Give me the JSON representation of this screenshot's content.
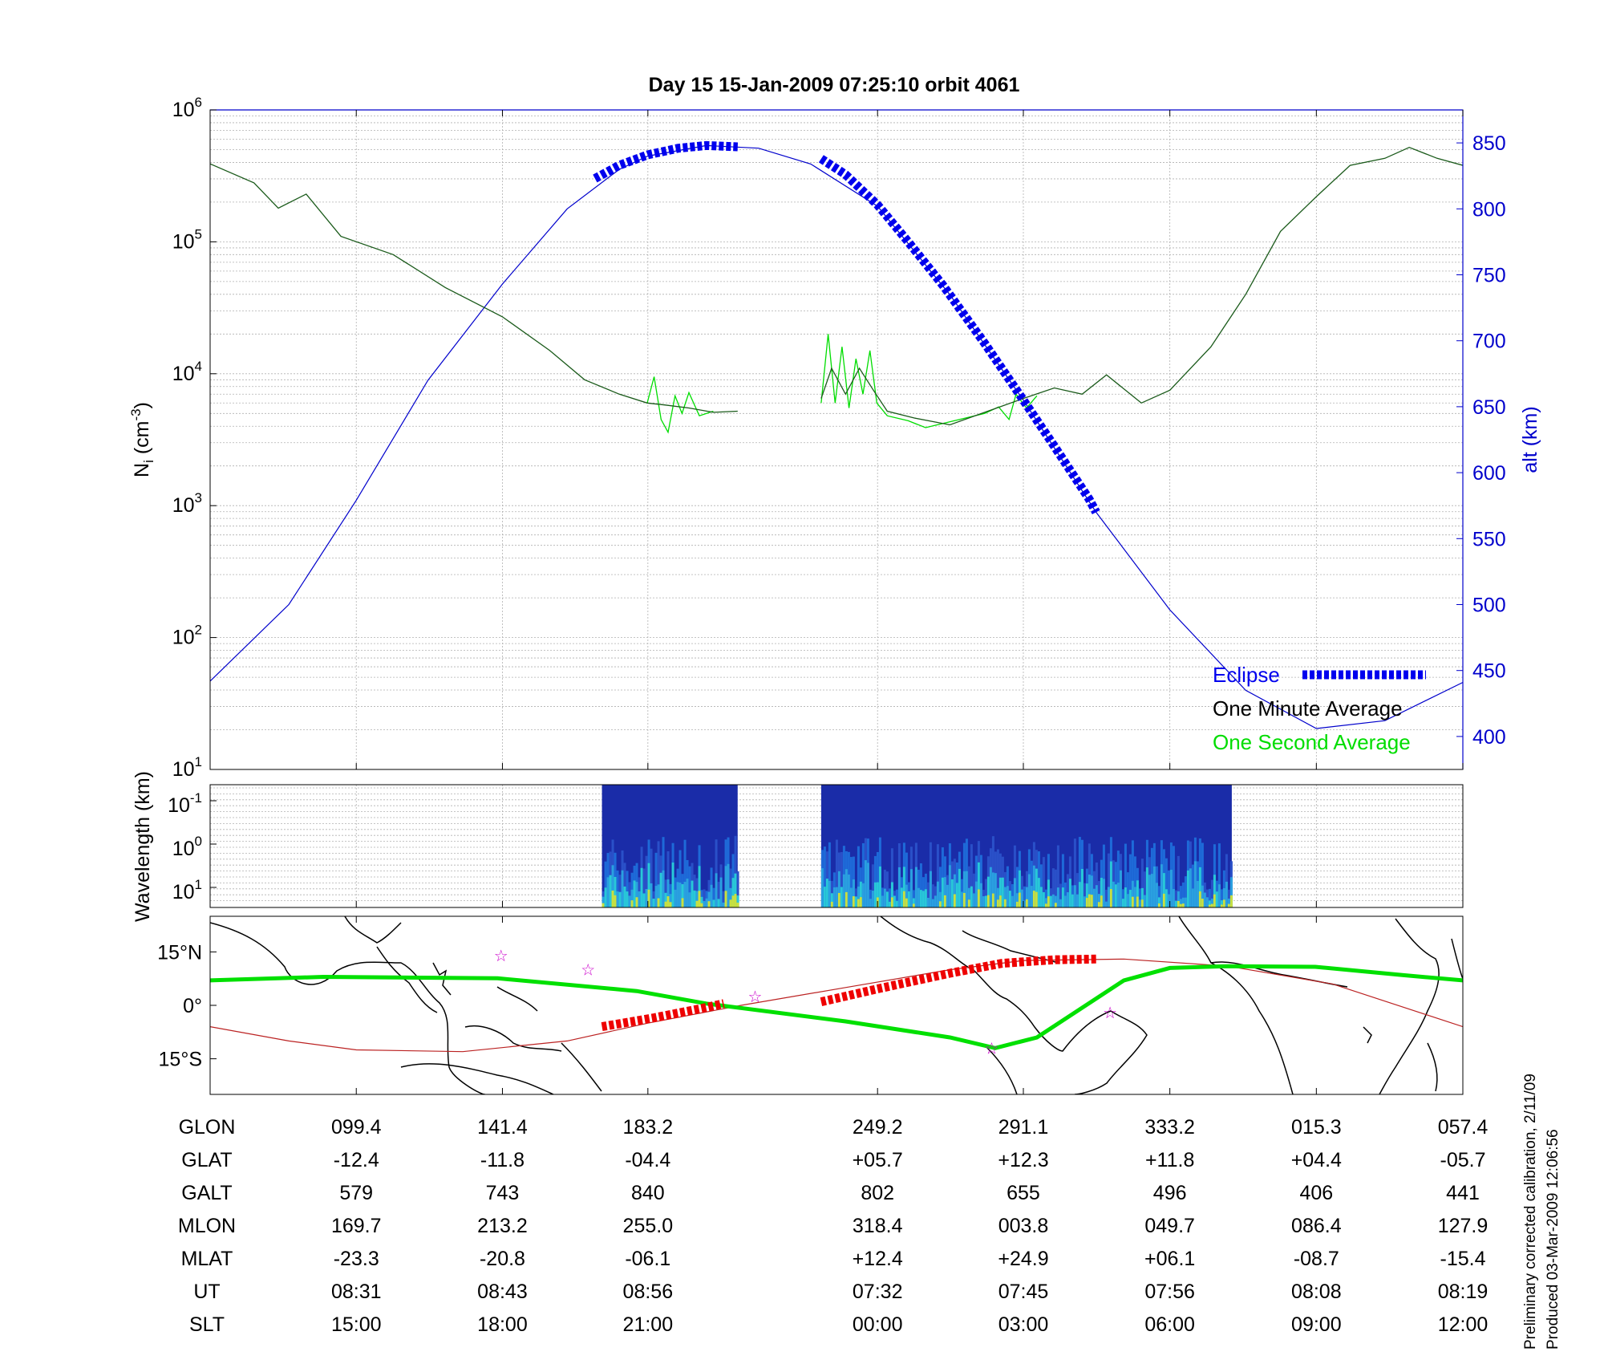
{
  "title": "Day 15  15-Jan-2009 07:25:10   orbit 4061",
  "colors": {
    "altitude": "#0000cc",
    "eclipse": "#0000ee",
    "one_minute": "#000000",
    "one_second": "#00dd00",
    "ground_track": "#00e000",
    "magnetic_equator": "#bb2222",
    "eclipse_track": "#ee0000",
    "stars": "#cc00cc"
  },
  "chart_data": [
    {
      "type": "line",
      "id": "density",
      "ylabel_main": "N",
      "ylabel_sub": "i",
      "ylabel_unit_open": " (cm",
      "ylabel_unit_sup": "-3",
      "ylabel_unit_close": ")",
      "y_log": true,
      "ylim": [
        10,
        1000000
      ],
      "y_ticks": [
        {
          "base": "10",
          "exp": "1"
        },
        {
          "base": "10",
          "exp": "2"
        },
        {
          "base": "10",
          "exp": "3"
        },
        {
          "base": "10",
          "exp": "4"
        },
        {
          "base": "10",
          "exp": "5"
        },
        {
          "base": "10",
          "exp": "6"
        }
      ],
      "y2label": "alt (km)",
      "y2lim": [
        375,
        875
      ],
      "y2_ticks": [
        "400",
        "450",
        "500",
        "550",
        "600",
        "650",
        "700",
        "750",
        "800",
        "850"
      ],
      "x_columns": [
        "099.4",
        "141.4",
        "183.2",
        "249.2",
        "291.1",
        "333.2",
        "015.3",
        "057.4"
      ],
      "x_domain_glon": [
        57.4,
        417.4
      ],
      "grid": true,
      "legend_position": "bottom-right",
      "legend": [
        {
          "key": "eclipse",
          "label": "Eclipse"
        },
        {
          "key": "one_minute",
          "label": "One Minute Average"
        },
        {
          "key": "one_second",
          "label": "One Second Average"
        }
      ],
      "altitude": [
        {
          "glon": 57.4,
          "alt": 442
        },
        {
          "glon": 80,
          "alt": 500
        },
        {
          "glon": 99.4,
          "alt": 579
        },
        {
          "glon": 120,
          "alt": 670
        },
        {
          "glon": 141.4,
          "alt": 743
        },
        {
          "glon": 160,
          "alt": 800
        },
        {
          "glon": 175,
          "alt": 830
        },
        {
          "glon": 183.2,
          "alt": 840
        },
        {
          "glon": 200,
          "alt": 848
        },
        {
          "glon": 215,
          "alt": 846
        },
        {
          "glon": 230,
          "alt": 834
        },
        {
          "glon": 249.2,
          "alt": 802
        },
        {
          "glon": 270,
          "alt": 735
        },
        {
          "glon": 291.1,
          "alt": 655
        },
        {
          "glon": 312,
          "alt": 570
        },
        {
          "glon": 333.2,
          "alt": 496
        },
        {
          "glon": 355,
          "alt": 435
        },
        {
          "glon": 375.3,
          "alt": 406
        },
        {
          "glon": 395,
          "alt": 412
        },
        {
          "glon": 417.4,
          "alt": 441
        }
      ],
      "eclipse": [
        {
          "glon": 168,
          "alt": 823
        },
        {
          "glon": 175,
          "alt": 833
        },
        {
          "glon": 183.2,
          "alt": 841
        },
        {
          "glon": 192,
          "alt": 846
        },
        {
          "glon": 200,
          "alt": 848
        },
        {
          "glon": 209,
          "alt": 847
        },
        {
          "glon": 233,
          "alt": 838
        },
        {
          "glon": 240,
          "alt": 826
        },
        {
          "glon": 249.2,
          "alt": 803
        },
        {
          "glon": 258,
          "alt": 775
        },
        {
          "glon": 268,
          "alt": 742
        },
        {
          "glon": 280,
          "alt": 698
        },
        {
          "glon": 291.1,
          "alt": 655
        },
        {
          "glon": 300,
          "alt": 620
        },
        {
          "glon": 310,
          "alt": 580
        },
        {
          "glon": 312,
          "alt": 570
        }
      ],
      "one_minute": [
        [
          {
            "glon": 57.4,
            "ni": 390000
          },
          {
            "glon": 70,
            "ni": 280000
          },
          {
            "glon": 77,
            "ni": 180000
          },
          {
            "glon": 85,
            "ni": 230000
          },
          {
            "glon": 95,
            "ni": 110000
          },
          {
            "glon": 110,
            "ni": 80000
          },
          {
            "glon": 125,
            "ni": 45000
          },
          {
            "glon": 141.4,
            "ni": 27000
          },
          {
            "glon": 155,
            "ni": 15000
          },
          {
            "glon": 165,
            "ni": 9000
          },
          {
            "glon": 175,
            "ni": 7000
          },
          {
            "glon": 183,
            "ni": 6000
          },
          {
            "glon": 188,
            "ni": 5800
          },
          {
            "glon": 195,
            "ni": 5500
          },
          {
            "glon": 202,
            "ni": 5100
          },
          {
            "glon": 209,
            "ni": 5200
          }
        ],
        [
          {
            "glon": 233,
            "ni": 6500
          },
          {
            "glon": 236,
            "ni": 11000
          },
          {
            "glon": 240,
            "ni": 7000
          },
          {
            "glon": 244,
            "ni": 11000
          },
          {
            "glon": 248,
            "ni": 7500
          },
          {
            "glon": 252,
            "ni": 5200
          },
          {
            "glon": 260,
            "ni": 4600
          },
          {
            "glon": 270,
            "ni": 4100
          },
          {
            "glon": 280,
            "ni": 5100
          },
          {
            "glon": 291.1,
            "ni": 6500
          },
          {
            "glon": 300,
            "ni": 7800
          },
          {
            "glon": 308,
            "ni": 7000
          },
          {
            "glon": 315,
            "ni": 9800
          },
          {
            "glon": 325,
            "ni": 6000
          },
          {
            "glon": 333.2,
            "ni": 7500
          },
          {
            "glon": 345,
            "ni": 16000
          },
          {
            "glon": 355,
            "ni": 40000
          },
          {
            "glon": 365,
            "ni": 120000
          },
          {
            "glon": 375.3,
            "ni": 220000
          },
          {
            "glon": 385,
            "ni": 380000
          },
          {
            "glon": 395,
            "ni": 430000
          },
          {
            "glon": 402,
            "ni": 520000
          },
          {
            "glon": 410,
            "ni": 430000
          },
          {
            "glon": 417.4,
            "ni": 380000
          }
        ]
      ],
      "one_second": [
        [
          {
            "glon": 183,
            "ni": 6000
          },
          {
            "glon": 185,
            "ni": 9500
          },
          {
            "glon": 187,
            "ni": 4500
          },
          {
            "glon": 189,
            "ni": 3600
          },
          {
            "glon": 191,
            "ni": 6800
          },
          {
            "glon": 193,
            "ni": 5000
          },
          {
            "glon": 195,
            "ni": 7200
          },
          {
            "glon": 198,
            "ni": 4800
          },
          {
            "glon": 202,
            "ni": 5200
          }
        ],
        [
          {
            "glon": 233,
            "ni": 6000
          },
          {
            "glon": 235,
            "ni": 20000
          },
          {
            "glon": 237,
            "ni": 6000
          },
          {
            "glon": 239,
            "ni": 16000
          },
          {
            "glon": 241,
            "ni": 5500
          },
          {
            "glon": 243,
            "ni": 13000
          },
          {
            "glon": 245,
            "ni": 7000
          },
          {
            "glon": 247,
            "ni": 15000
          },
          {
            "glon": 249,
            "ni": 6000
          },
          {
            "glon": 252,
            "ni": 4800
          },
          {
            "glon": 258,
            "ni": 4400
          },
          {
            "glon": 263,
            "ni": 3900
          },
          {
            "glon": 268,
            "ni": 4200
          },
          {
            "glon": 280,
            "ni": 5000
          },
          {
            "glon": 284,
            "ni": 5600
          },
          {
            "glon": 287,
            "ni": 4500
          },
          {
            "glon": 289,
            "ni": 7000
          },
          {
            "glon": 292,
            "ni": 5500
          },
          {
            "glon": 295,
            "ni": 6800
          }
        ]
      ]
    },
    {
      "type": "heatmap",
      "id": "spectrogram",
      "ylabel": "Wavelength (km)",
      "y_ticks": [
        {
          "base": "10",
          "exp": "-1"
        },
        {
          "base": "10",
          "exp": "0"
        },
        {
          "base": "10",
          "exp": "1"
        }
      ],
      "segments": [
        {
          "glon_start": 170,
          "glon_end": 209
        },
        {
          "glon_start": 233,
          "glon_end": 351
        }
      ]
    },
    {
      "type": "scatter",
      "id": "map",
      "y_ticks": [
        "15°N",
        "0°",
        "15°S"
      ],
      "ylim": [
        -25,
        25
      ],
      "ground_track": [
        {
          "glon": 57.4,
          "lat": 7
        },
        {
          "glon": 90,
          "lat": 8
        },
        {
          "glon": 140,
          "lat": 7.6
        },
        {
          "glon": 180,
          "lat": 4
        },
        {
          "glon": 200,
          "lat": 0.5
        },
        {
          "glon": 240,
          "lat": -4.5
        },
        {
          "glon": 270,
          "lat": -9
        },
        {
          "glon": 283,
          "lat": -12
        },
        {
          "glon": 295,
          "lat": -9
        },
        {
          "glon": 320,
          "lat": 7
        },
        {
          "glon": 333.2,
          "lat": 10.5
        },
        {
          "glon": 350,
          "lat": 11
        },
        {
          "glon": 375,
          "lat": 10.8
        },
        {
          "glon": 400,
          "lat": 8.5
        },
        {
          "glon": 417.4,
          "lat": 7
        }
      ],
      "magnetic_equator": [
        {
          "glon": 57.4,
          "lat": -6
        },
        {
          "glon": 80,
          "lat": -10
        },
        {
          "glon": 99.4,
          "lat": -12.5
        },
        {
          "glon": 130,
          "lat": -13
        },
        {
          "glon": 160,
          "lat": -10
        },
        {
          "glon": 183.2,
          "lat": -5
        },
        {
          "glon": 210,
          "lat": 0
        },
        {
          "glon": 240,
          "lat": 5
        },
        {
          "glon": 270,
          "lat": 10
        },
        {
          "glon": 291.1,
          "lat": 12.6
        },
        {
          "glon": 320,
          "lat": 13
        },
        {
          "glon": 350,
          "lat": 11
        },
        {
          "glon": 380,
          "lat": 6
        },
        {
          "glon": 417.4,
          "lat": -6
        }
      ],
      "eclipse_track": [
        [
          {
            "glon": 170,
            "lat": -6
          },
          {
            "glon": 185,
            "lat": -3.5
          },
          {
            "glon": 198,
            "lat": -1
          },
          {
            "glon": 205,
            "lat": 0.5
          }
        ],
        [
          {
            "glon": 233,
            "lat": 1
          },
          {
            "glon": 250,
            "lat": 4.8
          },
          {
            "glon": 270,
            "lat": 9
          },
          {
            "glon": 285,
            "lat": 11.8
          },
          {
            "glon": 300,
            "lat": 12.8
          },
          {
            "glon": 312,
            "lat": 13
          }
        ]
      ],
      "stars": [
        {
          "glon": 141,
          "lat": 14
        },
        {
          "glon": 166,
          "lat": 10
        },
        {
          "glon": 214,
          "lat": 2.5
        },
        {
          "glon": 282,
          "lat": -12
        },
        {
          "glon": 316,
          "lat": -2
        }
      ]
    }
  ],
  "table": {
    "rows": [
      {
        "label": "GLON",
        "values": [
          "099.4",
          "141.4",
          "183.2",
          "249.2",
          "291.1",
          "333.2",
          "015.3",
          "057.4"
        ]
      },
      {
        "label": "GLAT",
        "values": [
          "-12.4",
          "-11.8",
          "-04.4",
          "+05.7",
          "+12.3",
          "+11.8",
          "+04.4",
          "-05.7"
        ]
      },
      {
        "label": "GALT",
        "values": [
          "579",
          "743",
          "840",
          "802",
          "655",
          "496",
          "406",
          "441"
        ]
      },
      {
        "label": "MLON",
        "values": [
          "169.7",
          "213.2",
          "255.0",
          "318.4",
          "003.8",
          "049.7",
          "086.4",
          "127.9"
        ]
      },
      {
        "label": "MLAT",
        "values": [
          "-23.3",
          "-20.8",
          "-06.1",
          "+12.4",
          "+24.9",
          "+06.1",
          "-08.7",
          "-15.4"
        ]
      },
      {
        "label": "UT",
        "values": [
          "08:31",
          "08:43",
          "08:56",
          "07:32",
          "07:45",
          "07:56",
          "08:08",
          "08:19"
        ]
      },
      {
        "label": "SLT",
        "values": [
          "15:00",
          "18:00",
          "21:00",
          "00:00",
          "03:00",
          "06:00",
          "09:00",
          "12:00"
        ]
      }
    ]
  },
  "footer": {
    "calibration": "Preliminary corrected calibration, 2/11/09",
    "produced": "Produced 03-Mar-2009 12:06:56"
  }
}
